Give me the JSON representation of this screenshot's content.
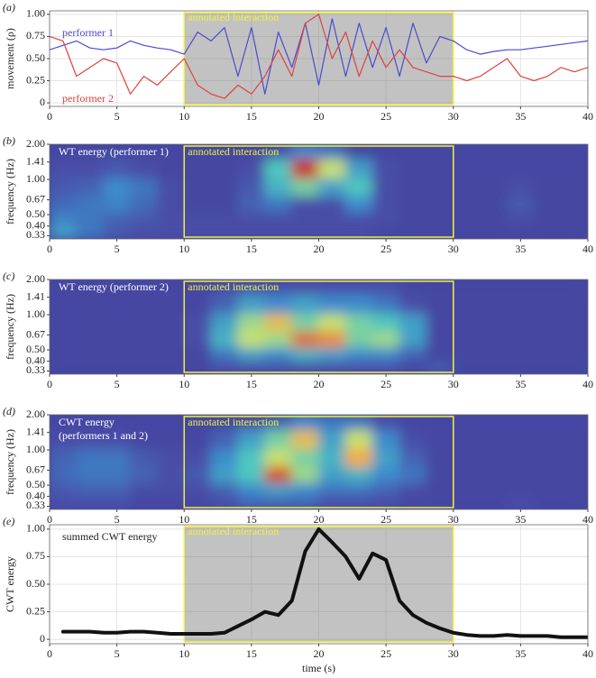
{
  "chart_data": [
    {
      "type": "line",
      "panel": "(a)",
      "ylabel": "movement (ρ)",
      "annotation": {
        "text": "annotated interaction",
        "x": [
          10,
          30
        ]
      },
      "x": [
        0,
        1,
        2,
        3,
        4,
        5,
        6,
        7,
        8,
        9,
        10,
        11,
        12,
        13,
        14,
        15,
        16,
        17,
        18,
        19,
        20,
        21,
        22,
        23,
        24,
        25,
        26,
        27,
        28,
        29,
        30,
        31,
        32,
        33,
        34,
        35,
        36,
        37,
        38,
        39,
        40
      ],
      "series": [
        {
          "name": "performer 1",
          "color": "#4a4ad0",
          "values": [
            0.6,
            0.65,
            0.7,
            0.62,
            0.6,
            0.62,
            0.7,
            0.65,
            0.62,
            0.6,
            0.55,
            0.8,
            0.7,
            0.85,
            0.3,
            0.85,
            0.1,
            0.8,
            0.4,
            0.9,
            0.2,
            0.95,
            0.3,
            0.9,
            0.4,
            0.85,
            0.3,
            0.9,
            0.45,
            0.75,
            0.7,
            0.6,
            0.55,
            0.58,
            0.6,
            0.6,
            0.62,
            0.64,
            0.66,
            0.68,
            0.7
          ]
        },
        {
          "name": "performer 2",
          "color": "#e04040",
          "values": [
            0.75,
            0.7,
            0.3,
            0.4,
            0.5,
            0.45,
            0.1,
            0.3,
            0.2,
            0.35,
            0.5,
            0.2,
            0.1,
            0.05,
            0.2,
            0.1,
            0.3,
            0.6,
            0.3,
            0.9,
            1.0,
            0.5,
            0.8,
            0.3,
            0.7,
            0.4,
            0.6,
            0.4,
            0.35,
            0.3,
            0.3,
            0.25,
            0.3,
            0.4,
            0.5,
            0.3,
            0.25,
            0.3,
            0.4,
            0.35,
            0.4
          ]
        }
      ],
      "xlim": [
        0,
        40
      ],
      "xticks": [
        0,
        5,
        10,
        15,
        20,
        25,
        30,
        35,
        40
      ],
      "ylim": [
        -0.04,
        1.04
      ],
      "yticks": [
        0,
        0.25,
        {
          "value": 0.5,
          "label": "0.50"
        },
        0.75,
        {
          "value": 1,
          "label": "1.00"
        }
      ],
      "grid": true
    },
    {
      "type": "heatmap",
      "panel": "(b)",
      "ylabel": "frequency (Hz)",
      "label": [
        "WT energy (performer 1)"
      ],
      "colormap": "jet",
      "annotation": {
        "text": "annotated interaction",
        "x": [
          10,
          30
        ]
      },
      "x": [
        1,
        3,
        5,
        7,
        9,
        11,
        13,
        15,
        17,
        19,
        21,
        23,
        25,
        27,
        29,
        31,
        33,
        35,
        37,
        39
      ],
      "y": [
        1.8,
        1.2,
        0.85,
        0.6,
        0.45,
        0.35
      ],
      "z": [
        [
          0.12,
          0.12,
          0.12,
          0.12,
          0.12,
          0.12,
          0.12,
          0.12,
          0.15,
          0.3,
          0.25,
          0.12,
          0.12,
          0.12,
          0.12,
          0.12,
          0.12,
          0.12,
          0.12,
          0.12
        ],
        [
          0.15,
          0.15,
          0.18,
          0.15,
          0.12,
          0.12,
          0.12,
          0.15,
          0.45,
          0.95,
          0.6,
          0.35,
          0.15,
          0.12,
          0.12,
          0.12,
          0.12,
          0.12,
          0.12,
          0.12
        ],
        [
          0.18,
          0.2,
          0.3,
          0.25,
          0.15,
          0.12,
          0.12,
          0.18,
          0.4,
          0.5,
          0.35,
          0.45,
          0.15,
          0.12,
          0.12,
          0.12,
          0.12,
          0.15,
          0.12,
          0.12
        ],
        [
          0.22,
          0.25,
          0.28,
          0.22,
          0.15,
          0.12,
          0.12,
          0.2,
          0.25,
          0.15,
          0.15,
          0.3,
          0.15,
          0.12,
          0.12,
          0.12,
          0.12,
          0.18,
          0.12,
          0.12
        ],
        [
          0.28,
          0.25,
          0.2,
          0.18,
          0.15,
          0.15,
          0.15,
          0.15,
          0.15,
          0.15,
          0.15,
          0.15,
          0.15,
          0.12,
          0.12,
          0.12,
          0.12,
          0.15,
          0.12,
          0.12
        ],
        [
          0.35,
          0.25,
          0.18,
          0.15,
          0.15,
          0.15,
          0.15,
          0.15,
          0.15,
          0.15,
          0.15,
          0.15,
          0.12,
          0.12,
          0.12,
          0.12,
          0.12,
          0.12,
          0.12,
          0.12
        ]
      ],
      "xlim": [
        0,
        40
      ],
      "xticks": [
        0,
        5,
        10,
        15,
        20,
        25,
        30,
        35,
        40
      ],
      "log": true,
      "ylim": [
        0.31,
        2
      ],
      "yticks": [
        {
          "value": 2,
          "label": "2.00"
        },
        1.41,
        {
          "value": 1,
          "label": "1.00"
        },
        0.67,
        {
          "value": 0.5,
          "label": "0.50"
        },
        {
          "value": 0.4,
          "label": "0.40"
        },
        0.33
      ]
    },
    {
      "type": "heatmap",
      "panel": "(c)",
      "ylabel": "frequency (Hz)",
      "label": [
        "WT energy (performer 2)"
      ],
      "colormap": "jet",
      "annotation": {
        "text": "annotated interaction",
        "x": [
          10,
          30
        ]
      },
      "x": [
        1,
        3,
        5,
        7,
        9,
        11,
        13,
        15,
        17,
        19,
        21,
        23,
        25,
        27,
        29,
        31,
        33,
        35,
        37,
        39
      ],
      "y": [
        1.8,
        1.2,
        0.85,
        0.6,
        0.45,
        0.35
      ],
      "z": [
        [
          0.12,
          0.12,
          0.12,
          0.12,
          0.12,
          0.12,
          0.15,
          0.15,
          0.15,
          0.15,
          0.15,
          0.15,
          0.15,
          0.12,
          0.12,
          0.12,
          0.12,
          0.12,
          0.12,
          0.12
        ],
        [
          0.12,
          0.12,
          0.12,
          0.12,
          0.12,
          0.12,
          0.2,
          0.35,
          0.3,
          0.35,
          0.3,
          0.3,
          0.25,
          0.15,
          0.12,
          0.12,
          0.12,
          0.12,
          0.12,
          0.12
        ],
        [
          0.12,
          0.12,
          0.12,
          0.12,
          0.12,
          0.15,
          0.35,
          0.55,
          0.7,
          0.5,
          0.6,
          0.5,
          0.45,
          0.35,
          0.12,
          0.12,
          0.12,
          0.12,
          0.12,
          0.12
        ],
        [
          0.12,
          0.12,
          0.12,
          0.12,
          0.12,
          0.15,
          0.4,
          0.6,
          0.55,
          0.85,
          0.8,
          0.5,
          0.55,
          0.35,
          0.12,
          0.12,
          0.12,
          0.12,
          0.12,
          0.12
        ],
        [
          0.12,
          0.12,
          0.12,
          0.12,
          0.12,
          0.12,
          0.25,
          0.35,
          0.3,
          0.4,
          0.35,
          0.3,
          0.3,
          0.2,
          0.12,
          0.12,
          0.12,
          0.12,
          0.12,
          0.12
        ],
        [
          0.12,
          0.12,
          0.12,
          0.12,
          0.12,
          0.12,
          0.15,
          0.15,
          0.15,
          0.15,
          0.15,
          0.15,
          0.15,
          0.12,
          0.18,
          0.12,
          0.12,
          0.12,
          0.12,
          0.12
        ]
      ],
      "xlim": [
        0,
        40
      ],
      "xticks": [
        0,
        5,
        10,
        15,
        20,
        25,
        30,
        35,
        40
      ],
      "log": true,
      "ylim": [
        0.31,
        2
      ],
      "yticks": [
        {
          "value": 2,
          "label": "2.00"
        },
        1.41,
        {
          "value": 1,
          "label": "1.00"
        },
        0.67,
        {
          "value": 0.5,
          "label": "0.50"
        },
        {
          "value": 0.4,
          "label": "0.40"
        },
        0.33
      ]
    },
    {
      "type": "heatmap",
      "panel": "(d)",
      "ylabel": "frequency (Hz)",
      "label": [
        "CWT energy",
        "(performers 1 and 2)"
      ],
      "colormap": "jet",
      "annotation": {
        "text": "annotated interaction",
        "x": [
          10,
          30
        ]
      },
      "x": [
        1,
        3,
        5,
        7,
        9,
        11,
        13,
        15,
        17,
        19,
        21,
        23,
        25,
        27,
        29,
        31,
        33,
        35,
        37,
        39
      ],
      "y": [
        1.8,
        1.2,
        0.85,
        0.6,
        0.45,
        0.35
      ],
      "z": [
        [
          0.12,
          0.12,
          0.12,
          0.12,
          0.12,
          0.12,
          0.12,
          0.15,
          0.2,
          0.3,
          0.25,
          0.25,
          0.15,
          0.12,
          0.12,
          0.12,
          0.12,
          0.12,
          0.12,
          0.12
        ],
        [
          0.15,
          0.15,
          0.15,
          0.12,
          0.12,
          0.12,
          0.2,
          0.35,
          0.5,
          0.7,
          0.35,
          0.6,
          0.3,
          0.15,
          0.12,
          0.12,
          0.12,
          0.12,
          0.12,
          0.12
        ],
        [
          0.2,
          0.25,
          0.25,
          0.18,
          0.15,
          0.15,
          0.3,
          0.45,
          0.6,
          0.5,
          0.4,
          0.75,
          0.35,
          0.2,
          0.12,
          0.12,
          0.12,
          0.12,
          0.12,
          0.12
        ],
        [
          0.22,
          0.25,
          0.25,
          0.2,
          0.15,
          0.18,
          0.35,
          0.45,
          0.9,
          0.55,
          0.35,
          0.4,
          0.3,
          0.25,
          0.12,
          0.12,
          0.12,
          0.12,
          0.12,
          0.12
        ],
        [
          0.18,
          0.2,
          0.2,
          0.15,
          0.15,
          0.15,
          0.2,
          0.3,
          0.35,
          0.3,
          0.25,
          0.25,
          0.2,
          0.15,
          0.12,
          0.12,
          0.12,
          0.12,
          0.12,
          0.12
        ],
        [
          0.15,
          0.15,
          0.15,
          0.12,
          0.12,
          0.12,
          0.15,
          0.2,
          0.2,
          0.2,
          0.15,
          0.15,
          0.15,
          0.12,
          0.12,
          0.12,
          0.12,
          0.15,
          0.12,
          0.12
        ]
      ],
      "xlim": [
        0,
        40
      ],
      "xticks": [
        0,
        5,
        10,
        15,
        20,
        25,
        30,
        35,
        40
      ],
      "log": true,
      "ylim": [
        0.31,
        2
      ],
      "yticks": [
        {
          "value": 2,
          "label": "2.00"
        },
        1.41,
        {
          "value": 1,
          "label": "1.00"
        },
        0.67,
        {
          "value": 0.5,
          "label": "0.50"
        },
        {
          "value": 0.4,
          "label": "0.40"
        },
        0.33
      ]
    },
    {
      "type": "line",
      "panel": "(e)",
      "ylabel": "CWT energy",
      "xlabel": "time (s)",
      "annotation": {
        "text": "annotated interaction",
        "x": [
          10,
          30
        ]
      },
      "x": [
        1,
        2,
        3,
        4,
        5,
        6,
        7,
        8,
        9,
        10,
        11,
        12,
        13,
        14,
        15,
        16,
        17,
        18,
        19,
        20,
        21,
        22,
        23,
        24,
        25,
        26,
        27,
        28,
        29,
        30,
        31,
        32,
        33,
        34,
        35,
        36,
        37,
        38,
        39,
        40
      ],
      "series": [
        {
          "name": "summed CWT energy",
          "color": "#111111",
          "values": [
            0.07,
            0.07,
            0.07,
            0.06,
            0.06,
            0.07,
            0.07,
            0.06,
            0.05,
            0.05,
            0.05,
            0.05,
            0.06,
            0.12,
            0.18,
            0.25,
            0.22,
            0.35,
            0.8,
            1.0,
            0.88,
            0.75,
            0.55,
            0.78,
            0.72,
            0.35,
            0.22,
            0.15,
            0.1,
            0.06,
            0.04,
            0.03,
            0.03,
            0.04,
            0.03,
            0.03,
            0.03,
            0.02,
            0.02,
            0.02
          ]
        }
      ],
      "xlim": [
        0,
        40
      ],
      "xticks": [
        0,
        5,
        10,
        15,
        20,
        25,
        30,
        35,
        40
      ],
      "ylim": [
        -0.04,
        1.04
      ],
      "yticks": [
        0,
        0.25,
        {
          "value": 0.5,
          "label": "0.50"
        },
        0.75,
        {
          "value": 1,
          "label": "1.00"
        }
      ],
      "grid": true
    }
  ]
}
